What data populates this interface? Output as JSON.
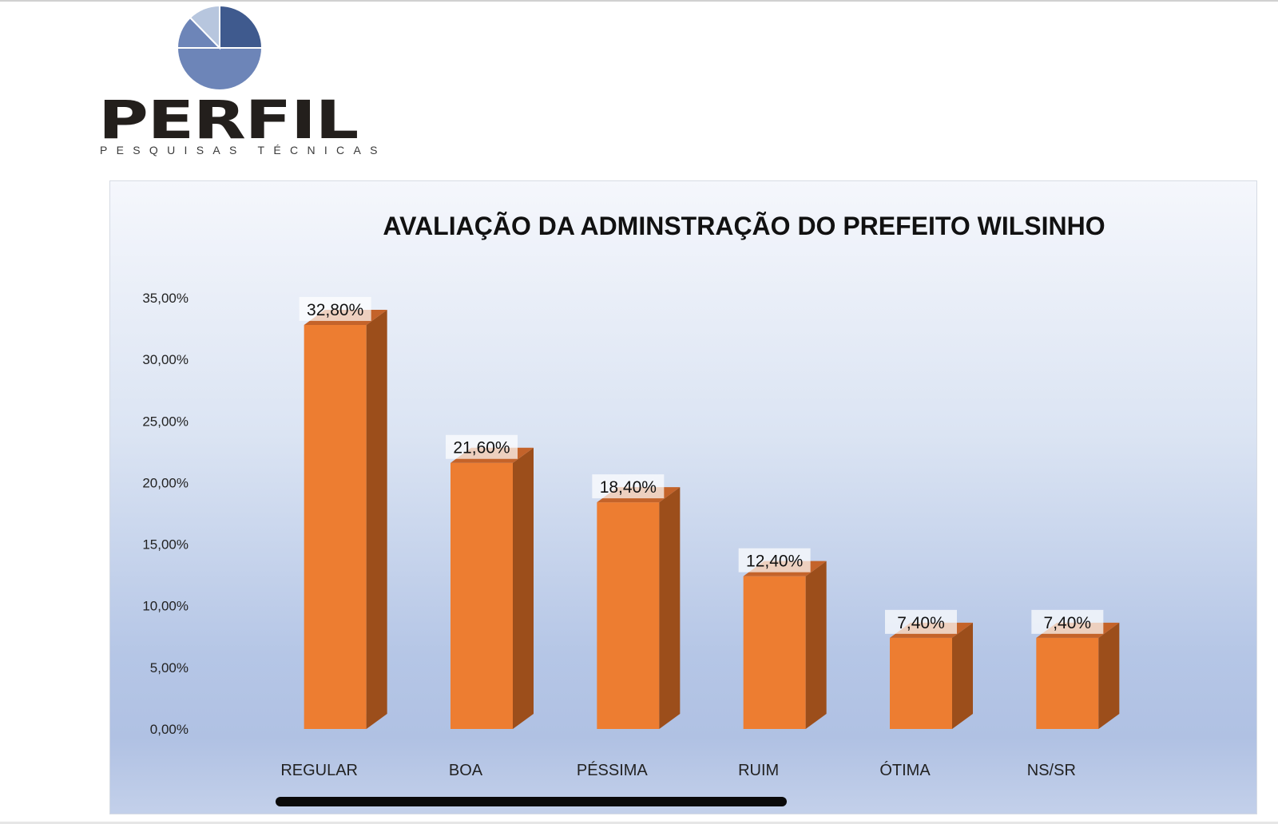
{
  "logo": {
    "name": "PERFIL",
    "tagline": "PESQUISAS TÉCNICAS",
    "colors": {
      "dark": "#3f5a8e",
      "mid": "#6d85b8",
      "light": "#b7c6de"
    }
  },
  "chart_data": {
    "type": "bar",
    "title": "AVALIAÇÃO DA ADMINSTRAÇÃO DO PREFEITO WILSINHO",
    "categories": [
      "REGULAR",
      "BOA",
      "PÉSSIMA",
      "RUIM",
      "ÓTIMA",
      "NS/SR"
    ],
    "values": [
      32.8,
      21.6,
      18.4,
      12.4,
      7.4,
      7.4
    ],
    "data_labels": [
      "32,80%",
      "21,60%",
      "18,40%",
      "12,40%",
      "7,40%",
      "7,40%"
    ],
    "ylim": [
      0,
      35
    ],
    "yticks": [
      0,
      5,
      10,
      15,
      20,
      25,
      30,
      35
    ],
    "ytick_labels": [
      "0,00%",
      "5,00%",
      "10,00%",
      "15,00%",
      "20,00%",
      "25,00%",
      "30,00%",
      "35,00%"
    ],
    "xlabel": "",
    "ylabel": "",
    "grid": false,
    "style": "3d-column",
    "colors": {
      "bar_front": "#ed7d31",
      "bar_side": "#9c4e1b",
      "bar_top": "#c4632a"
    }
  }
}
